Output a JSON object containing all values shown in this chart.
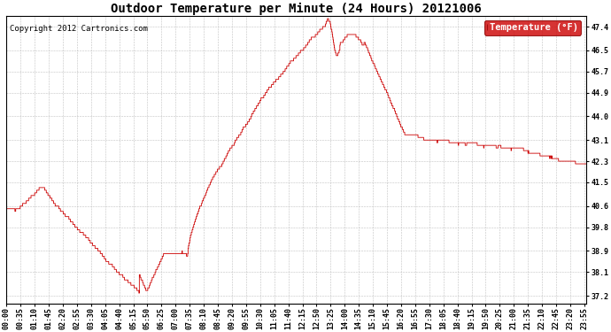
{
  "title": "Outdoor Temperature per Minute (24 Hours) 20121006",
  "copyright_text": "Copyright 2012 Cartronics.com",
  "legend_label": "Temperature (°F)",
  "line_color": "#cc0000",
  "background_color": "#ffffff",
  "plot_bg_color": "#ffffff",
  "grid_color": "#bbbbbb",
  "yticks": [
    37.2,
    38.1,
    38.9,
    39.8,
    40.6,
    41.5,
    42.3,
    43.1,
    44.0,
    44.9,
    45.7,
    46.5,
    47.4
  ],
  "ylim": [
    36.9,
    47.8
  ],
  "x_tick_labels": [
    "00:00",
    "00:35",
    "01:10",
    "01:45",
    "02:20",
    "02:55",
    "03:30",
    "04:05",
    "04:40",
    "05:15",
    "05:50",
    "06:25",
    "07:00",
    "07:35",
    "08:10",
    "08:45",
    "09:20",
    "09:55",
    "10:30",
    "11:05",
    "11:40",
    "12:15",
    "12:50",
    "13:25",
    "14:00",
    "14:35",
    "15:10",
    "15:45",
    "16:20",
    "16:55",
    "17:30",
    "18:05",
    "18:40",
    "19:15",
    "19:50",
    "20:25",
    "21:00",
    "21:35",
    "22:10",
    "22:45",
    "23:20",
    "23:55"
  ],
  "title_fontsize": 10,
  "axis_fontsize": 6,
  "copyright_fontsize": 6.5,
  "legend_fontsize": 7.5,
  "figsize": [
    6.9,
    3.75
  ],
  "dpi": 100
}
